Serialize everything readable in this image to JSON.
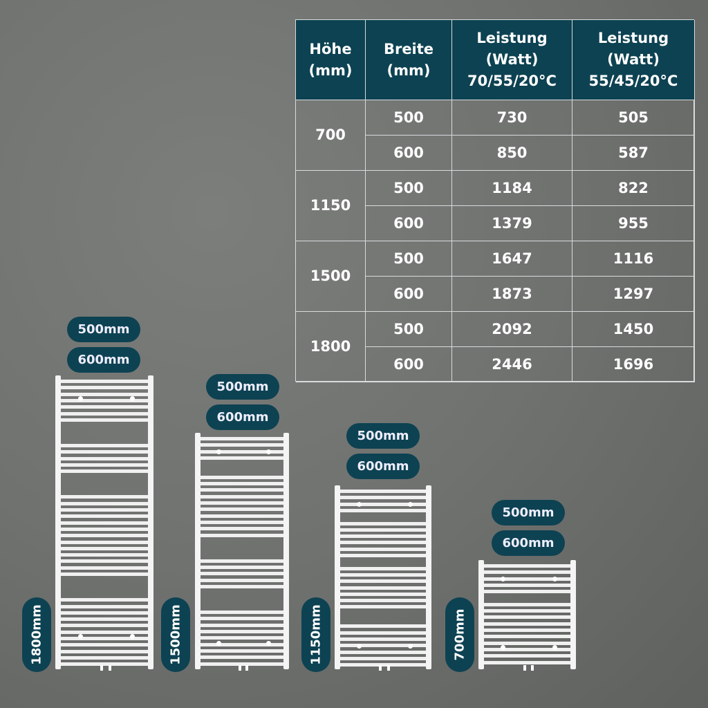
{
  "table": {
    "headers": [
      "Höhe\n(mm)",
      "Breite\n(mm)",
      "Leistung\n(Watt)\n70/55/20°C",
      "Leistung\n(Watt)\n55/45/20°C"
    ],
    "groups": [
      {
        "height": "700",
        "rows": [
          [
            "500",
            "730",
            "505"
          ],
          [
            "600",
            "850",
            "587"
          ]
        ]
      },
      {
        "height": "1150",
        "rows": [
          [
            "500",
            "1184",
            "822"
          ],
          [
            "600",
            "1379",
            "955"
          ]
        ]
      },
      {
        "height": "1500",
        "rows": [
          [
            "500",
            "1647",
            "1116"
          ],
          [
            "600",
            "1873",
            "1297"
          ]
        ]
      },
      {
        "height": "1800",
        "rows": [
          [
            "500",
            "2092",
            "1450"
          ],
          [
            "600",
            "2446",
            "1696"
          ]
        ]
      }
    ],
    "header_color": "#0d4252"
  },
  "radiators": [
    {
      "height_label": "1800mm",
      "width_labels": [
        "500mm",
        "600mm"
      ]
    },
    {
      "height_label": "1500mm",
      "width_labels": [
        "500mm",
        "600mm"
      ]
    },
    {
      "height_label": "1150mm",
      "width_labels": [
        "500mm",
        "600mm"
      ]
    },
    {
      "height_label": "700mm",
      "width_labels": [
        "500mm",
        "600mm"
      ]
    }
  ]
}
